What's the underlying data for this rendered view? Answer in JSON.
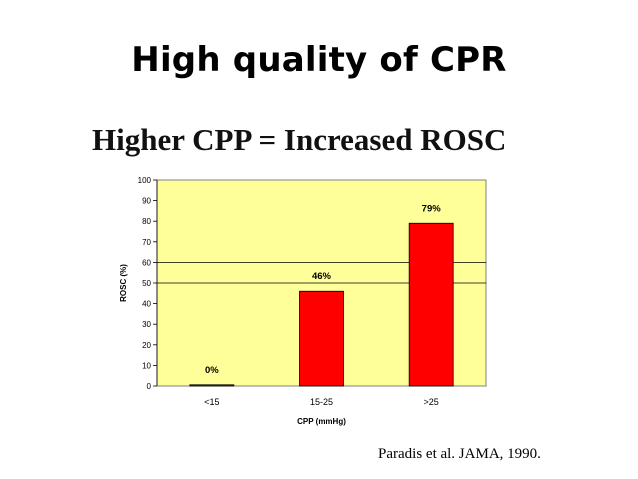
{
  "slide": {
    "title": "High quality of CPR",
    "subtitle": "Higher CPP = Increased ROSC",
    "citation": "Paradis et al. JAMA, 1990."
  },
  "chart_data": {
    "type": "bar",
    "categories": [
      "<15",
      "15-25",
      ">25"
    ],
    "values": [
      0,
      46,
      79
    ],
    "data_labels": [
      "0%",
      "46%",
      "79%"
    ],
    "xlabel": "CPP (mmHg)",
    "ylabel": "ROSC (%)",
    "ylim": [
      0,
      100
    ],
    "yticks": [
      0,
      10,
      20,
      30,
      40,
      50,
      60,
      70,
      80,
      90,
      100
    ],
    "reference_lines": [
      50,
      60
    ],
    "grid": false,
    "legend": "none",
    "colors": {
      "plot_background": "#FFFF99",
      "bar_fill": "#FF0000",
      "bar_stroke": "#000000"
    }
  }
}
